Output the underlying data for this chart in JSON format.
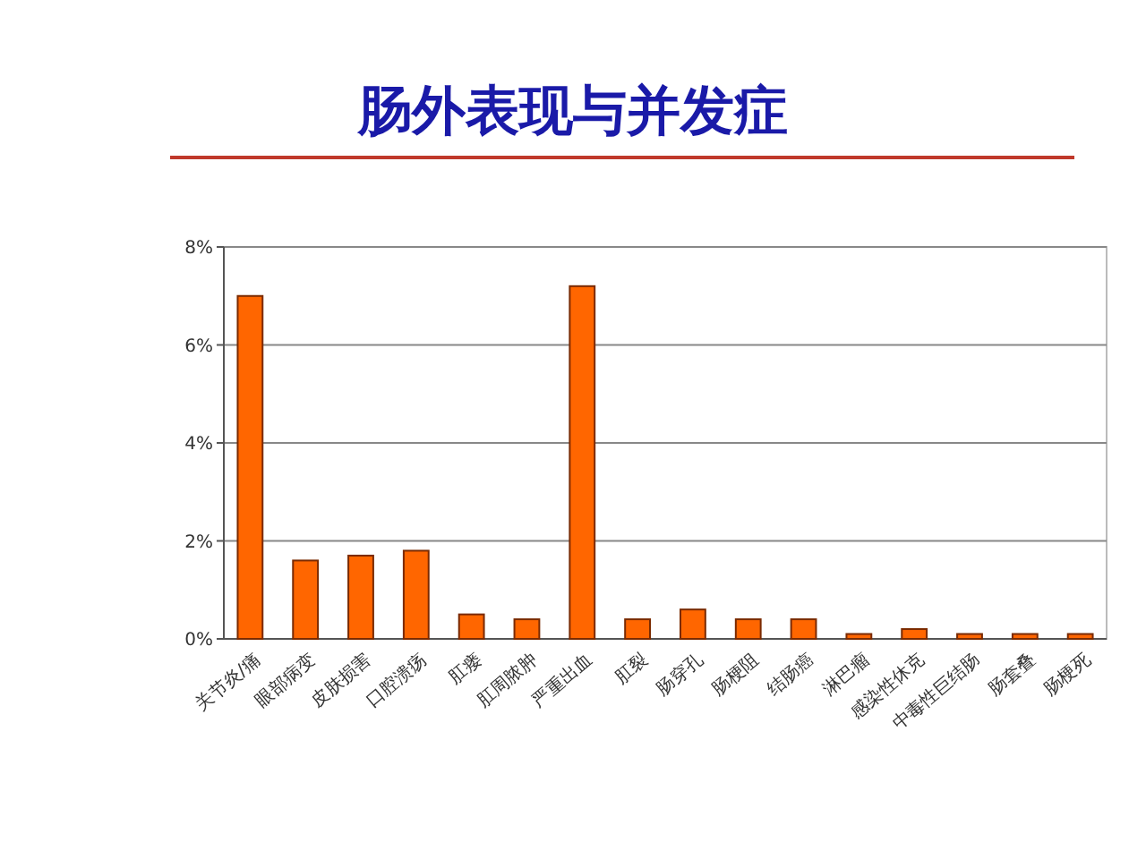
{
  "chart_data": {
    "type": "bar",
    "title": "肠外表现与并发症",
    "categories": [
      "关节炎/痛",
      "眼部病变",
      "皮肤损害",
      "口腔溃疡",
      "肛瘘",
      "肛周脓肿",
      "严重出血",
      "肛裂",
      "肠穿孔",
      "肠梗阻",
      "结肠癌",
      "淋巴瘤",
      "感染性休克",
      "中毒性巨结肠",
      "肠套叠",
      "肠梗死"
    ],
    "values": [
      7.0,
      1.6,
      1.7,
      1.8,
      0.5,
      0.4,
      7.2,
      0.4,
      0.6,
      0.4,
      0.4,
      0.1,
      0.2,
      0.1,
      0.1,
      0.1
    ],
    "color": "#ff6600",
    "ylim": [
      0,
      8
    ],
    "yticks": [
      {
        "value": 0,
        "label": "0%"
      },
      {
        "value": 2,
        "label": "2%"
      },
      {
        "value": 4,
        "label": "4%"
      },
      {
        "value": 6,
        "label": "6%"
      },
      {
        "value": 8,
        "label": "8%"
      }
    ],
    "grid": "y"
  }
}
